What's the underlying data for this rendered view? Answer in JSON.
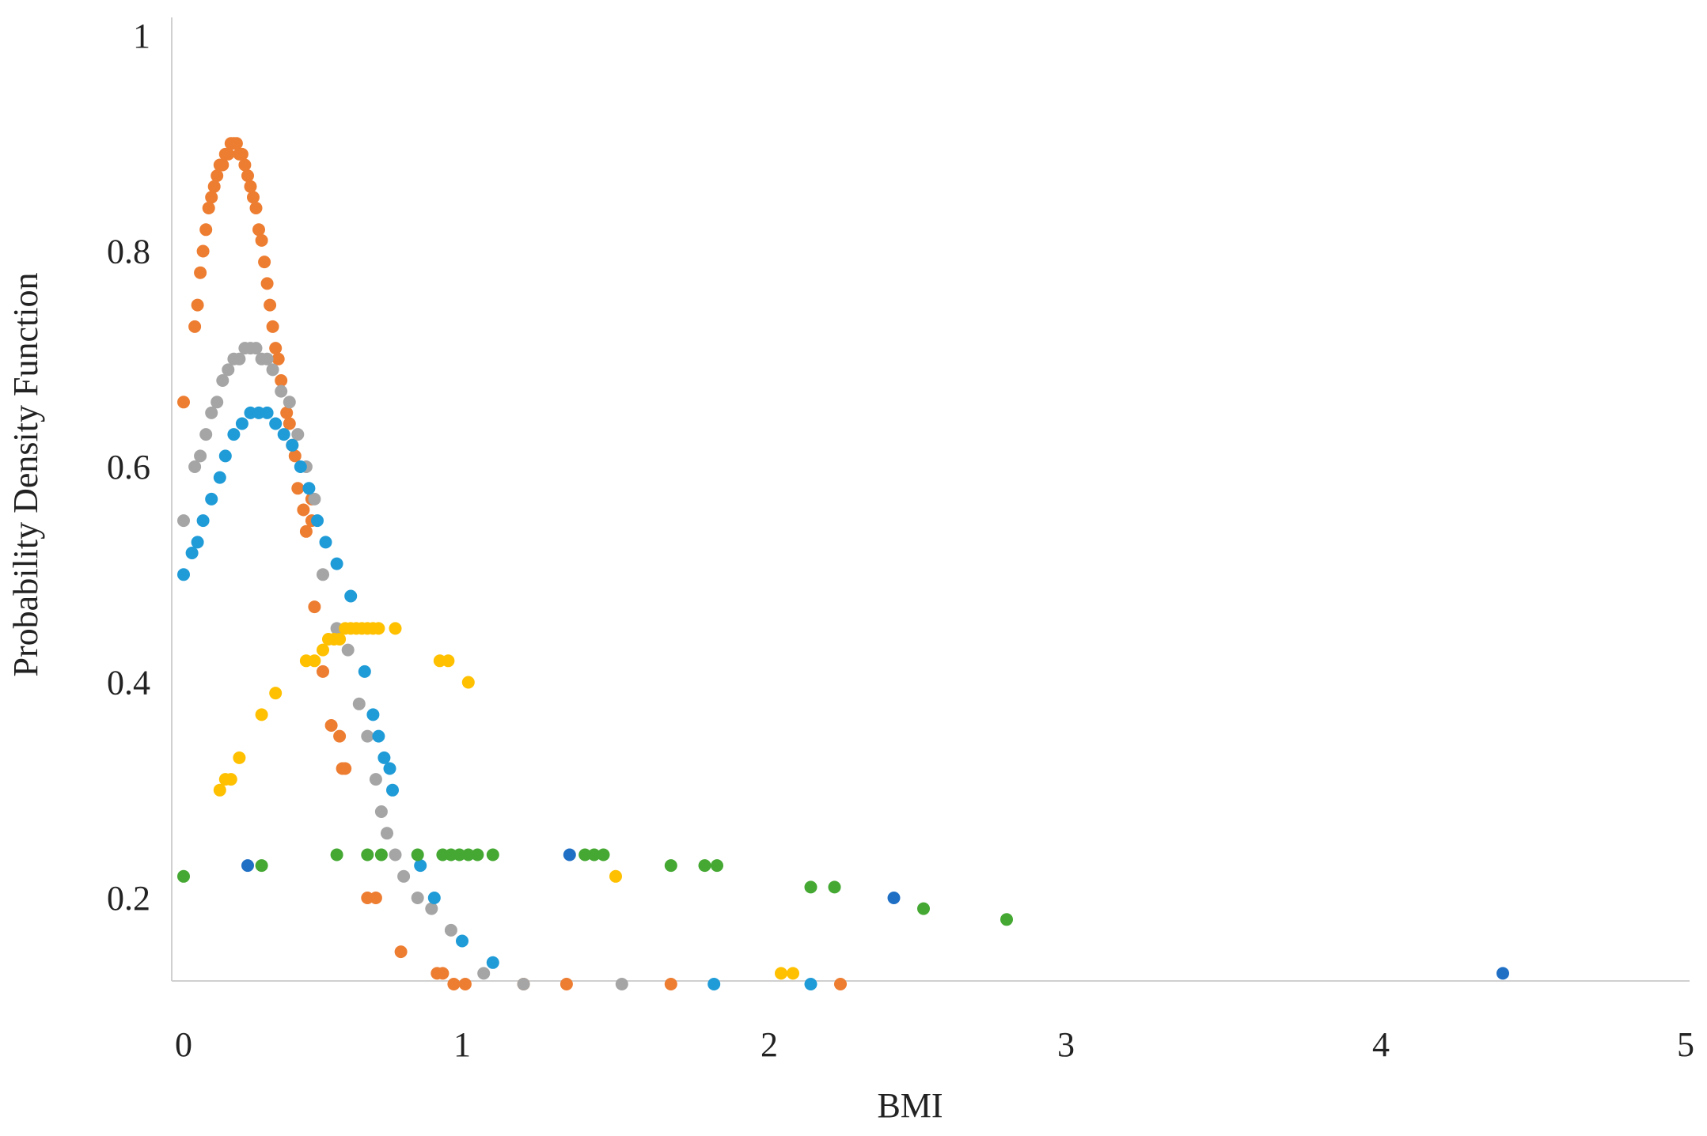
{
  "chart_data": {
    "type": "scatter",
    "title": "",
    "xlabel": "BMI",
    "ylabel": "Probability Density Function",
    "xlim": [
      0,
      5
    ],
    "ylim": [
      0.12,
      1.0
    ],
    "x_ticks": [
      "0",
      "1",
      "2",
      "3",
      "4",
      "5"
    ],
    "y_ticks": [
      "0.2",
      "0.4",
      "0.6",
      "0.8",
      "1"
    ],
    "grid": false,
    "legend": "none",
    "series": [
      {
        "color": "#ED7D31",
        "x": [
          0,
          0.04,
          0.05,
          0.06,
          0.07,
          0.08,
          0.09,
          0.1,
          0.11,
          0.12,
          0.13,
          0.14,
          0.15,
          0.16,
          0.17,
          0.18,
          0.19,
          0.2,
          0.21,
          0.22,
          0.23,
          0.24,
          0.25,
          0.26,
          0.27,
          0.28,
          0.29,
          0.3,
          0.31,
          0.32,
          0.33,
          0.34,
          0.35,
          0.37,
          0.38,
          0.39,
          0.4,
          0.41,
          0.43,
          0.44,
          0.46,
          0.46,
          0.47,
          0.5,
          0.53,
          0.56,
          0.57,
          0.58,
          0.66,
          0.69,
          0.78,
          0.91,
          0.93,
          0.97,
          1.01,
          1.2,
          1.34,
          1.68,
          2.24
        ],
        "y": [
          0.66,
          0.73,
          0.75,
          0.78,
          0.8,
          0.82,
          0.84,
          0.85,
          0.86,
          0.87,
          0.88,
          0.88,
          0.89,
          0.89,
          0.9,
          0.9,
          0.9,
          0.89,
          0.89,
          0.88,
          0.87,
          0.86,
          0.85,
          0.84,
          0.82,
          0.81,
          0.79,
          0.77,
          0.75,
          0.73,
          0.71,
          0.7,
          0.68,
          0.65,
          0.64,
          0.62,
          0.61,
          0.58,
          0.56,
          0.54,
          0.57,
          0.55,
          0.47,
          0.41,
          0.36,
          0.35,
          0.32,
          0.32,
          0.2,
          0.2,
          0.15,
          0.13,
          0.13,
          0.12,
          0.12,
          0.12,
          0.12,
          0.12,
          0.12
        ]
      },
      {
        "color": "#A5A5A5",
        "x": [
          0,
          0.04,
          0.06,
          0.08,
          0.1,
          0.12,
          0.14,
          0.16,
          0.18,
          0.2,
          0.22,
          0.24,
          0.26,
          0.28,
          0.3,
          0.32,
          0.35,
          0.38,
          0.41,
          0.44,
          0.47,
          0.5,
          0.55,
          0.59,
          0.63,
          0.66,
          0.69,
          0.71,
          0.73,
          0.76,
          0.79,
          0.84,
          0.89,
          0.96,
          1.07,
          1.2,
          1.52
        ],
        "y": [
          0.55,
          0.6,
          0.61,
          0.63,
          0.65,
          0.66,
          0.68,
          0.69,
          0.7,
          0.7,
          0.71,
          0.71,
          0.71,
          0.7,
          0.7,
          0.69,
          0.67,
          0.66,
          0.63,
          0.6,
          0.57,
          0.5,
          0.45,
          0.43,
          0.38,
          0.35,
          0.31,
          0.28,
          0.26,
          0.24,
          0.22,
          0.2,
          0.19,
          0.17,
          0.13,
          0.12,
          0.12
        ]
      },
      {
        "color": "#1F9BD7",
        "x": [
          0,
          0.03,
          0.05,
          0.07,
          0.1,
          0.13,
          0.15,
          0.18,
          0.21,
          0.24,
          0.27,
          0.3,
          0.33,
          0.36,
          0.39,
          0.42,
          0.45,
          0.48,
          0.51,
          0.55,
          0.6,
          0.65,
          0.68,
          0.7,
          0.72,
          0.74,
          0.75,
          0.85,
          0.9,
          1.0,
          1.1,
          1.82,
          2.14
        ],
        "y": [
          0.5,
          0.52,
          0.53,
          0.55,
          0.57,
          0.59,
          0.61,
          0.63,
          0.64,
          0.65,
          0.65,
          0.65,
          0.64,
          0.63,
          0.62,
          0.6,
          0.58,
          0.55,
          0.53,
          0.51,
          0.48,
          0.41,
          0.37,
          0.35,
          0.33,
          0.32,
          0.3,
          0.23,
          0.2,
          0.16,
          0.14,
          0.12,
          0.12
        ]
      },
      {
        "color": "#FFC000",
        "x": [
          0.13,
          0.15,
          0.17,
          0.2,
          0.28,
          0.33,
          0.44,
          0.47,
          0.5,
          0.52,
          0.54,
          0.56,
          0.58,
          0.6,
          0.62,
          0.64,
          0.66,
          0.68,
          0.7,
          0.76,
          0.92,
          0.95,
          1.02,
          1.5,
          2.04,
          2.08
        ],
        "y": [
          0.3,
          0.31,
          0.31,
          0.33,
          0.37,
          0.39,
          0.42,
          0.42,
          0.43,
          0.44,
          0.44,
          0.44,
          0.45,
          0.45,
          0.45,
          0.45,
          0.45,
          0.45,
          0.45,
          0.45,
          0.42,
          0.42,
          0.4,
          0.22,
          0.13,
          0.13
        ]
      },
      {
        "color": "#44A832",
        "x": [
          0,
          0.28,
          0.55,
          0.66,
          0.71,
          0.84,
          0.93,
          0.96,
          0.99,
          1.02,
          1.05,
          1.1,
          1.4,
          1.43,
          1.46,
          1.68,
          1.79,
          1.83,
          2.14,
          2.22,
          2.52,
          2.8
        ],
        "y": [
          0.22,
          0.23,
          0.24,
          0.24,
          0.24,
          0.24,
          0.24,
          0.24,
          0.24,
          0.24,
          0.24,
          0.24,
          0.24,
          0.24,
          0.24,
          0.23,
          0.23,
          0.23,
          0.21,
          0.21,
          0.19,
          0.18
        ]
      },
      {
        "color": "#1F6FC5",
        "x": [
          0.23,
          1.35,
          2.42,
          4.4
        ],
        "y": [
          0.23,
          0.24,
          0.2,
          0.13
        ]
      }
    ]
  }
}
